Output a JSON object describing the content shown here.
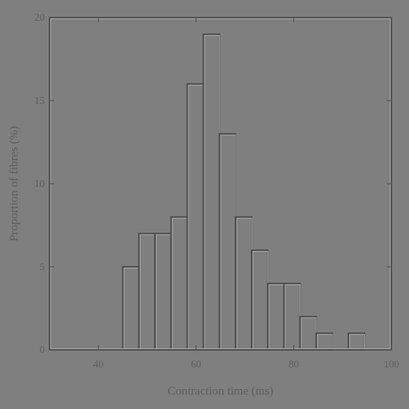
{
  "chart_data": {
    "type": "bar",
    "title": "",
    "xlabel": "Contraction time (ms)",
    "ylabel": "Proportion of fibres (%)",
    "xlim": [
      30,
      100
    ],
    "ylim": [
      0,
      20
    ],
    "xticks": [
      40,
      60,
      80,
      100
    ],
    "yticks": [
      0,
      5,
      10,
      15,
      20
    ],
    "bin_width": 3.3,
    "bins": [
      {
        "start": 45.0,
        "value": 5
      },
      {
        "start": 48.3,
        "value": 7
      },
      {
        "start": 51.6,
        "value": 7
      },
      {
        "start": 54.9,
        "value": 8
      },
      {
        "start": 58.2,
        "value": 16
      },
      {
        "start": 61.5,
        "value": 19
      },
      {
        "start": 64.8,
        "value": 13
      },
      {
        "start": 68.1,
        "value": 8
      },
      {
        "start": 71.4,
        "value": 6
      },
      {
        "start": 74.7,
        "value": 4
      },
      {
        "start": 78.0,
        "value": 4
      },
      {
        "start": 81.3,
        "value": 2
      },
      {
        "start": 84.6,
        "value": 1
      },
      {
        "start": 91.2,
        "value": 1
      }
    ],
    "grid": false,
    "legend": "none"
  }
}
